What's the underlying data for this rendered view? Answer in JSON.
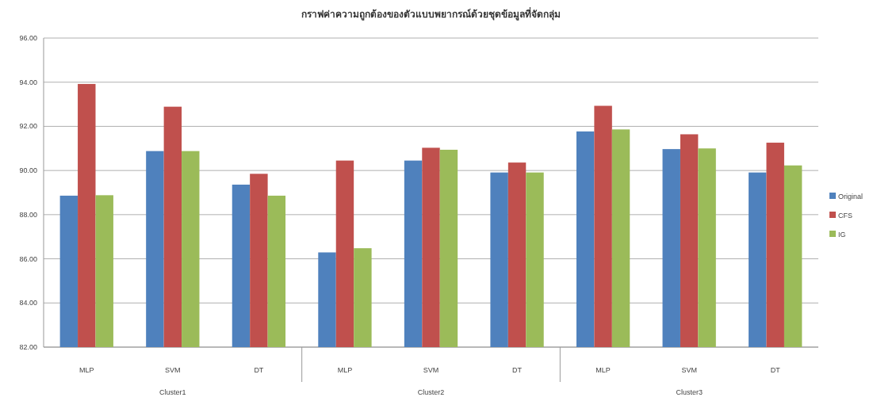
{
  "chart_data": {
    "type": "bar",
    "title": "กราฟค่าความถูกต้องของตัวแบบพยากรณ์ด้วยชุดข้อมูลที่จัดกลุ่ม",
    "categories": [
      "MLP",
      "SVM",
      "DT",
      "MLP",
      "SVM",
      "DT",
      "MLP",
      "SVM",
      "DT"
    ],
    "annotations": [
      "Cluster1",
      "Cluster2",
      "Cluster3"
    ],
    "series": [
      {
        "name": "Original",
        "color": "#4f81bd",
        "values": [
          88.86,
          90.88,
          89.36,
          86.29,
          90.45,
          89.91,
          91.77,
          90.97,
          89.91
        ]
      },
      {
        "name": "CFS",
        "color": "#c0504d",
        "values": [
          93.92,
          92.89,
          89.85,
          90.45,
          91.03,
          90.36,
          92.93,
          91.64,
          91.26
        ]
      },
      {
        "name": "IG",
        "color": "#9bbb59",
        "values": [
          88.88,
          90.88,
          88.86,
          86.48,
          90.94,
          89.91,
          91.86,
          91.0,
          90.23
        ]
      }
    ],
    "ylim": [
      82,
      96
    ],
    "yticks": [
      {
        "value": 82,
        "label": "82.00"
      },
      {
        "value": 84,
        "label": "84.00"
      },
      {
        "value": 86,
        "label": "86.00"
      },
      {
        "value": 88,
        "label": "88.00"
      },
      {
        "value": 90,
        "label": "90.00"
      },
      {
        "value": 92,
        "label": "92.00"
      },
      {
        "value": 94,
        "label": "94.00"
      },
      {
        "value": 96,
        "label": "96.00"
      }
    ],
    "grid": "y",
    "legend": "right"
  }
}
